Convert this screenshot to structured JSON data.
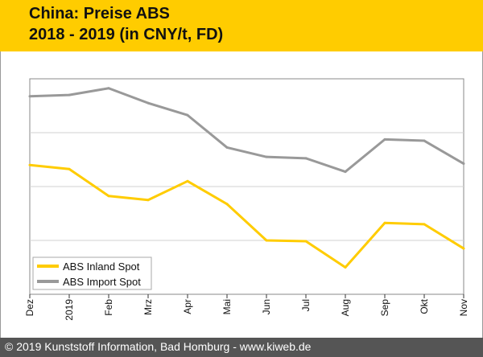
{
  "header": {
    "title_line1": "China: Preise ABS",
    "title_line2": "2018 - 2019 (in CNY/t, FD)"
  },
  "footer": {
    "copyright": "© 2019 Kunststoff Information, Bad Homburg - www.kiweb.de"
  },
  "colors": {
    "header_bg": "#ffcc00",
    "inland": "#ffcc00",
    "import": "#999999",
    "footer_bg": "#555555"
  },
  "chart_data": {
    "type": "line",
    "title": "China: Preise ABS 2018 - 2019 (in CNY/t, FD)",
    "categories": [
      "Dez",
      "2019",
      "Feb",
      "Mrz",
      "Apr",
      "Mai",
      "Jun",
      "Jul",
      "Aug",
      "Sep",
      "Okt",
      "Nov"
    ],
    "ylim": [
      0,
      8
    ],
    "ygrid": [
      2,
      4,
      6
    ],
    "ytick_labels_shown": false,
    "series": [
      {
        "name": "ABS Inland Spot",
        "color": "#ffcc00",
        "values": [
          4.8,
          4.65,
          3.65,
          3.5,
          4.2,
          3.35,
          2.0,
          1.97,
          1.0,
          2.65,
          2.6,
          1.7
        ]
      },
      {
        "name": "ABS Import Spot",
        "color": "#999999",
        "values": [
          7.35,
          7.4,
          7.65,
          7.1,
          6.65,
          5.45,
          5.1,
          5.05,
          4.55,
          5.75,
          5.7,
          4.85
        ]
      }
    ],
    "legend": "bottom-left"
  }
}
